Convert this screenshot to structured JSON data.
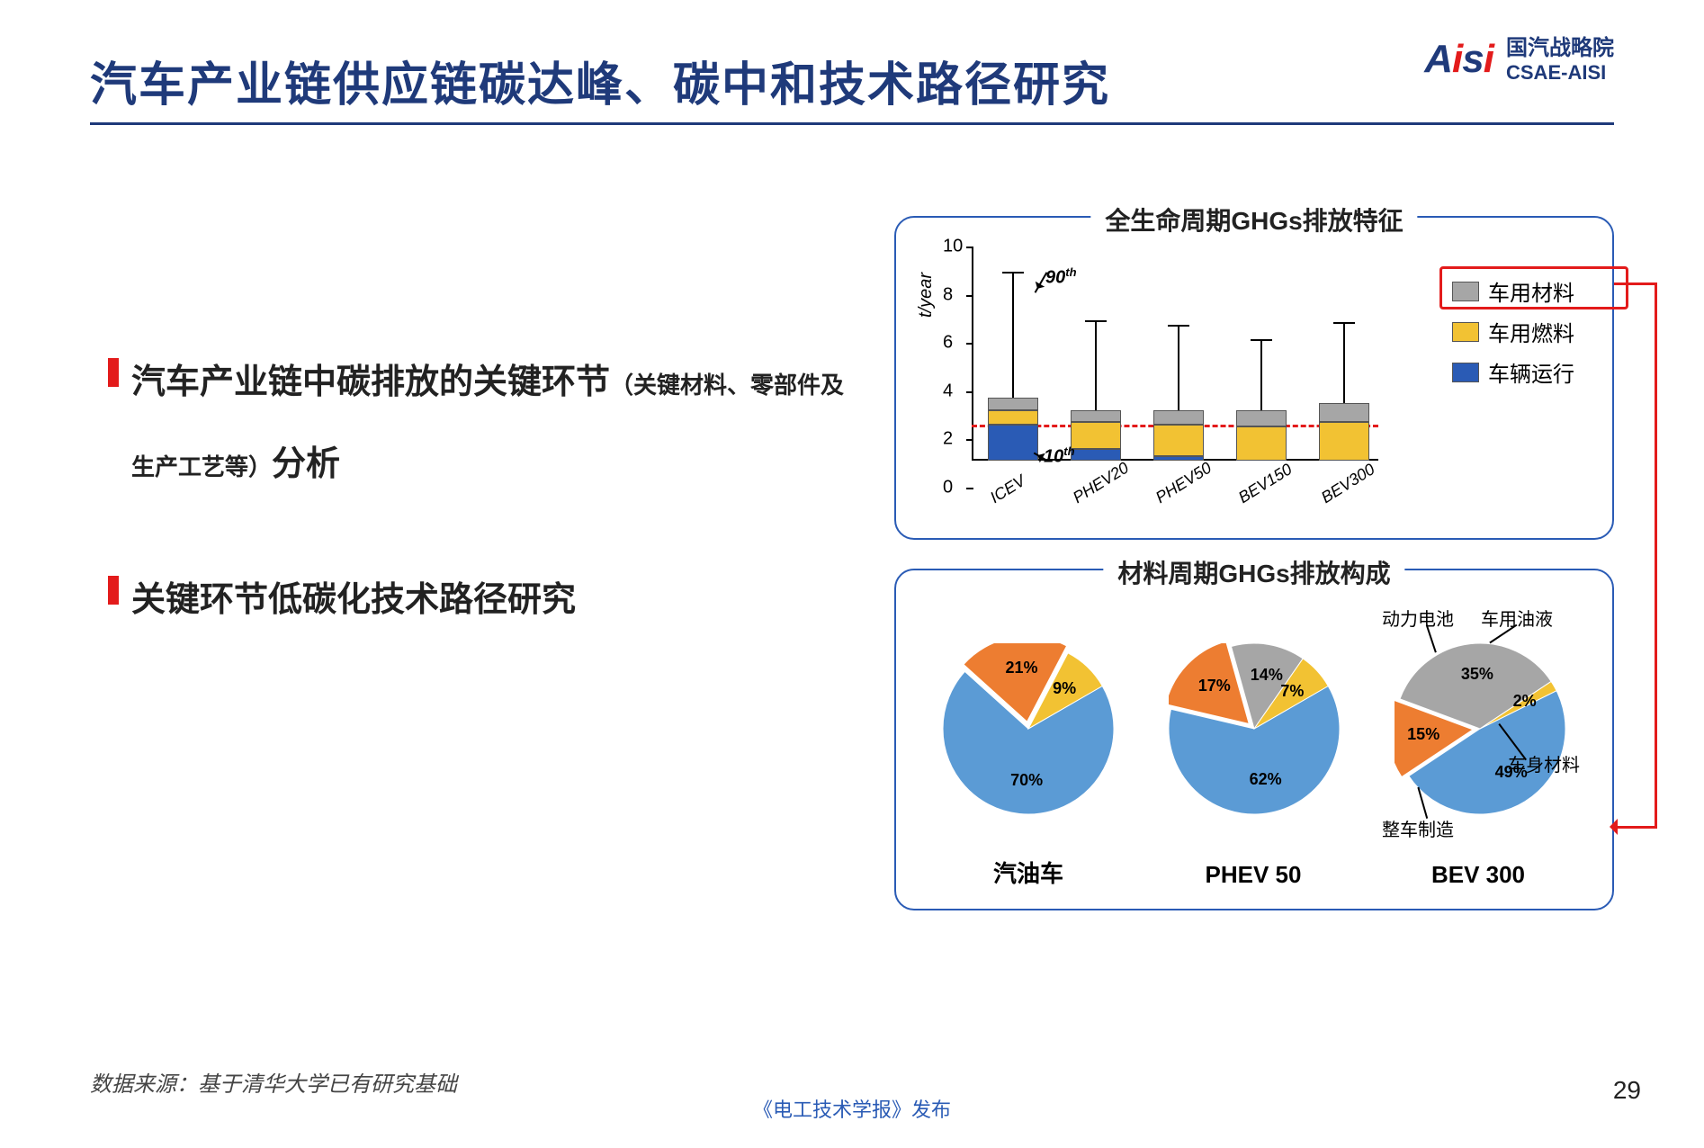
{
  "header": {
    "title": "汽车产业链供应链碳达峰、碳中和技术路径研究",
    "logo_cn": "国汽战略院",
    "logo_en": "CSAE-AISI",
    "logo_mark": "Aisi"
  },
  "bullets": [
    {
      "main_a": "汽车产业链中碳排放的关键环节",
      "small": "（关键材料、零部件及生产工艺等）",
      "main_b": "分析"
    },
    {
      "main_a": "关键环节低碳化技术路径研究",
      "small": "",
      "main_b": ""
    }
  ],
  "bar_chart": {
    "title": "全生命周期GHGs排放特征",
    "ylabel": "t/year",
    "ylim": [
      0,
      10
    ],
    "ytick_step": 2,
    "yticks": [
      0,
      2,
      4,
      6,
      8,
      10
    ],
    "categories": [
      "ICEV",
      "PHEV20",
      "PHEV50",
      "BEV150",
      "BEV300"
    ],
    "stacks": [
      {
        "blue": 1.5,
        "yellow": 0.6,
        "grey": 0.5,
        "whisker_top": 7.8
      },
      {
        "blue": 0.5,
        "yellow": 1.1,
        "grey": 0.5,
        "whisker_top": 5.8
      },
      {
        "blue": 0.2,
        "yellow": 1.3,
        "grey": 0.6,
        "whisker_top": 5.6
      },
      {
        "blue": 0.0,
        "yellow": 1.4,
        "grey": 0.7,
        "whisker_top": 5.0
      },
      {
        "blue": 0.0,
        "yellow": 1.6,
        "grey": 0.8,
        "whisker_top": 5.7
      }
    ],
    "ref_line_y": 2.6,
    "anno_90": "90",
    "anno_10": "10",
    "legend": [
      {
        "label": "车用材料",
        "color": "#a6a6a6",
        "highlight": true
      },
      {
        "label": "车用燃料",
        "color": "#f2c233"
      },
      {
        "label": "车辆运行",
        "color": "#2a5bb5"
      }
    ],
    "colors": {
      "blue": "#2a5bb5",
      "yellow": "#f2c233",
      "grey": "#a6a6a6"
    },
    "font_size_axis": 20,
    "font_size_legend": 24
  },
  "pie_chart": {
    "title": "材料周期GHGs排放构成",
    "colors": {
      "body": "#5b9bd5",
      "manufacture": "#ed7d31",
      "fluid": "#f2c233",
      "battery": "#a6a6a6"
    },
    "pies": [
      {
        "label": "汽油车",
        "slices": [
          {
            "k": "body",
            "v": 70
          },
          {
            "k": "manufacture",
            "v": 21
          },
          {
            "k": "battery",
            "v": 0
          },
          {
            "k": "fluid",
            "v": 9
          }
        ]
      },
      {
        "label": "PHEV 50",
        "slices": [
          {
            "k": "body",
            "v": 62
          },
          {
            "k": "manufacture",
            "v": 17
          },
          {
            "k": "battery",
            "v": 14
          },
          {
            "k": "fluid",
            "v": 7
          }
        ]
      },
      {
        "label": "BEV 300",
        "slices": [
          {
            "k": "body",
            "v": 49
          },
          {
            "k": "manufacture",
            "v": 15
          },
          {
            "k": "battery",
            "v": 35
          },
          {
            "k": "fluid",
            "v": 2
          }
        ]
      }
    ],
    "callouts": {
      "battery": "动力电池",
      "fluid": "车用油液",
      "body": "车身材料",
      "manufacture": "整车制造"
    },
    "font_size_label": 26,
    "font_size_pct": 18
  },
  "footer": {
    "source": "数据来源：基于清华大学已有研究基础",
    "publisher": "《电工技术学报》发布",
    "page": "29"
  }
}
